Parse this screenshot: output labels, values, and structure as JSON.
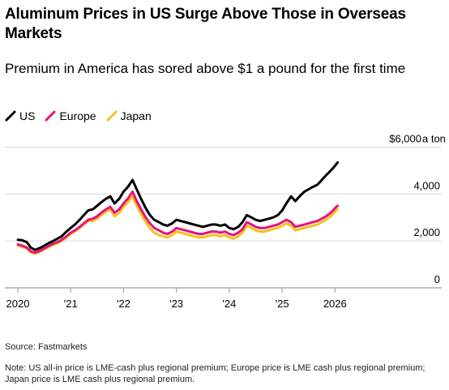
{
  "title": "Aluminum Prices in US Surge Above Those in Overseas Markets",
  "subtitle": "Premium in America has sored above $1 a pound for the first time",
  "source": "Source: Fastmarkets",
  "note": "Note: US all-in price is LME-cash plus regional premium; Europe price is LME cash plus regional premium; Japan price is LME cash plus regional premium.",
  "chart_data": {
    "type": "line",
    "ylabel": "a ton",
    "yunit_prefix": "$",
    "ylim": [
      0,
      6500
    ],
    "xlim": [
      2020.0,
      2026.9
    ],
    "yticks": [
      0,
      2000,
      4000,
      6000
    ],
    "ytick_labels": [
      "0",
      "2,000",
      "4,000",
      "$6,000"
    ],
    "xticks": [
      2020,
      2021,
      2022,
      2023,
      2024,
      2025,
      2026
    ],
    "xtick_labels": [
      "2020",
      "'21",
      "'22",
      "'23",
      "'24",
      "'25",
      "2026"
    ],
    "grid": true,
    "legend_position": "top-left",
    "series": [
      {
        "name": "US",
        "color": "#000000",
        "x": [
          2020.0,
          2020.08,
          2020.17,
          2020.25,
          2020.33,
          2020.42,
          2020.5,
          2020.58,
          2020.67,
          2020.75,
          2020.83,
          2020.92,
          2021.0,
          2021.08,
          2021.17,
          2021.25,
          2021.33,
          2021.42,
          2021.5,
          2021.58,
          2021.67,
          2021.75,
          2021.83,
          2021.92,
          2022.0,
          2022.08,
          2022.17,
          2022.25,
          2022.33,
          2022.42,
          2022.5,
          2022.58,
          2022.67,
          2022.75,
          2022.83,
          2022.92,
          2023.0,
          2023.08,
          2023.17,
          2023.25,
          2023.33,
          2023.42,
          2023.5,
          2023.58,
          2023.67,
          2023.75,
          2023.83,
          2023.92,
          2024.0,
          2024.08,
          2024.17,
          2024.25,
          2024.33,
          2024.42,
          2024.5,
          2024.58,
          2024.67,
          2024.75,
          2024.83,
          2024.92,
          2025.0,
          2025.08,
          2025.17,
          2025.25,
          2025.33,
          2025.42,
          2025.5,
          2025.58,
          2025.67,
          2025.75,
          2025.83,
          2025.92,
          2026.0,
          2026.05
        ],
        "values": [
          2050,
          2030,
          1950,
          1700,
          1620,
          1700,
          1800,
          1900,
          2000,
          2100,
          2200,
          2400,
          2550,
          2700,
          2900,
          3100,
          3300,
          3350,
          3500,
          3650,
          3800,
          3900,
          3600,
          3800,
          4100,
          4300,
          4600,
          4200,
          3800,
          3400,
          3100,
          2900,
          2800,
          2700,
          2650,
          2750,
          2900,
          2850,
          2800,
          2750,
          2700,
          2650,
          2600,
          2650,
          2700,
          2700,
          2650,
          2700,
          2550,
          2500,
          2600,
          2800,
          3100,
          3000,
          2900,
          2850,
          2900,
          2950,
          3000,
          3100,
          3300,
          3600,
          3900,
          3700,
          3900,
          4100,
          4200,
          4300,
          4400,
          4600,
          4800,
          5000,
          5200,
          5350
        ]
      },
      {
        "name": "Europe",
        "color": "#e8127c",
        "x": [
          2020.0,
          2020.08,
          2020.17,
          2020.25,
          2020.33,
          2020.42,
          2020.5,
          2020.58,
          2020.67,
          2020.75,
          2020.83,
          2020.92,
          2021.0,
          2021.08,
          2021.17,
          2021.25,
          2021.33,
          2021.42,
          2021.5,
          2021.58,
          2021.67,
          2021.75,
          2021.83,
          2021.92,
          2022.0,
          2022.08,
          2022.17,
          2022.25,
          2022.33,
          2022.42,
          2022.5,
          2022.58,
          2022.67,
          2022.75,
          2022.83,
          2022.92,
          2023.0,
          2023.08,
          2023.17,
          2023.25,
          2023.33,
          2023.42,
          2023.5,
          2023.58,
          2023.67,
          2023.75,
          2023.83,
          2023.92,
          2024.0,
          2024.08,
          2024.17,
          2024.25,
          2024.33,
          2024.42,
          2024.5,
          2024.58,
          2024.67,
          2024.75,
          2024.83,
          2024.92,
          2025.0,
          2025.08,
          2025.17,
          2025.25,
          2025.33,
          2025.42,
          2025.5,
          2025.58,
          2025.67,
          2025.75,
          2025.83,
          2025.92,
          2026.0,
          2026.05
        ],
        "values": [
          1850,
          1800,
          1720,
          1550,
          1500,
          1580,
          1680,
          1780,
          1880,
          1950,
          2050,
          2200,
          2350,
          2450,
          2600,
          2750,
          2900,
          2950,
          3050,
          3200,
          3350,
          3450,
          3200,
          3350,
          3600,
          3800,
          4100,
          3700,
          3350,
          3000,
          2750,
          2550,
          2450,
          2350,
          2300,
          2400,
          2550,
          2500,
          2450,
          2400,
          2350,
          2300,
          2300,
          2350,
          2400,
          2400,
          2350,
          2400,
          2300,
          2250,
          2350,
          2500,
          2800,
          2700,
          2600,
          2550,
          2550,
          2600,
          2650,
          2700,
          2800,
          2900,
          2800,
          2600,
          2650,
          2700,
          2750,
          2800,
          2850,
          2950,
          3050,
          3200,
          3400,
          3500
        ]
      },
      {
        "name": "Japan",
        "color": "#f6c21b",
        "x": [
          2020.0,
          2020.08,
          2020.17,
          2020.25,
          2020.33,
          2020.42,
          2020.5,
          2020.58,
          2020.67,
          2020.75,
          2020.83,
          2020.92,
          2021.0,
          2021.08,
          2021.17,
          2021.25,
          2021.33,
          2021.42,
          2021.5,
          2021.58,
          2021.67,
          2021.75,
          2021.83,
          2021.92,
          2022.0,
          2022.08,
          2022.17,
          2022.25,
          2022.33,
          2022.42,
          2022.5,
          2022.58,
          2022.67,
          2022.75,
          2022.83,
          2022.92,
          2023.0,
          2023.08,
          2023.17,
          2023.25,
          2023.33,
          2023.42,
          2023.5,
          2023.58,
          2023.67,
          2023.75,
          2023.83,
          2023.92,
          2024.0,
          2024.08,
          2024.17,
          2024.25,
          2024.33,
          2024.42,
          2024.5,
          2024.58,
          2024.67,
          2024.75,
          2024.83,
          2024.92,
          2025.0,
          2025.08,
          2025.17,
          2025.25,
          2025.33,
          2025.42,
          2025.5,
          2025.58,
          2025.67,
          2025.75,
          2025.83,
          2025.92,
          2026.0,
          2026.05
        ],
        "values": [
          1800,
          1750,
          1680,
          1500,
          1460,
          1540,
          1640,
          1740,
          1840,
          1900,
          2000,
          2150,
          2300,
          2400,
          2550,
          2700,
          2850,
          2850,
          2950,
          3100,
          3250,
          3350,
          3050,
          3200,
          3450,
          3650,
          3900,
          3500,
          3150,
          2800,
          2550,
          2350,
          2250,
          2200,
          2150,
          2250,
          2400,
          2350,
          2300,
          2250,
          2200,
          2150,
          2150,
          2200,
          2250,
          2250,
          2200,
          2250,
          2150,
          2100,
          2200,
          2350,
          2650,
          2550,
          2450,
          2400,
          2400,
          2450,
          2500,
          2550,
          2650,
          2750,
          2650,
          2450,
          2500,
          2550,
          2600,
          2650,
          2700,
          2800,
          2900,
          3050,
          3250,
          3350
        ]
      }
    ]
  }
}
